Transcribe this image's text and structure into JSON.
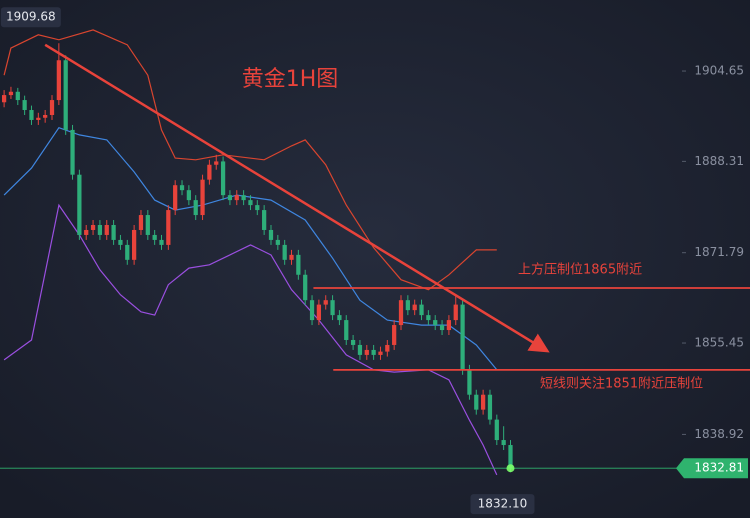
{
  "chart_data": {
    "type": "candlestick",
    "title": "黄金1H图",
    "xlim": [
      -0.6,
      109.0
    ],
    "ylim": [
      1823.8,
      1917.5
    ],
    "yticks": [
      1838.92,
      1855.45,
      1871.79,
      1888.31,
      1904.65
    ],
    "up_color": "#e8433b",
    "down_color": "#2eae7a",
    "candles": [
      [
        1899.0,
        1901.2,
        1898.1,
        1900.3
      ],
      [
        1900.3,
        1901.8,
        1899.6,
        1900.9
      ],
      [
        1900.9,
        1901.6,
        1898.5,
        1899.4
      ],
      [
        1899.4,
        1900.2,
        1896.7,
        1897.6
      ],
      [
        1897.6,
        1898.4,
        1894.9,
        1895.8
      ],
      [
        1895.8,
        1897.1,
        1894.9,
        1896.2
      ],
      [
        1896.2,
        1897.6,
        1895.3,
        1896.7
      ],
      [
        1896.7,
        1900.3,
        1895.8,
        1899.4
      ],
      [
        1899.4,
        1909.68,
        1898.5,
        1906.6
      ],
      [
        1906.6,
        1907.5,
        1893.1,
        1894.0
      ],
      [
        1894.0,
        1894.9,
        1885.0,
        1885.9
      ],
      [
        1885.9,
        1886.8,
        1874.1,
        1875.0
      ],
      [
        1875.0,
        1876.8,
        1874.1,
        1875.9
      ],
      [
        1875.9,
        1877.7,
        1875.0,
        1876.8
      ],
      [
        1876.8,
        1877.7,
        1874.1,
        1875.0
      ],
      [
        1875.0,
        1877.7,
        1874.1,
        1876.8
      ],
      [
        1876.8,
        1877.7,
        1873.2,
        1874.1
      ],
      [
        1874.1,
        1875.0,
        1872.3,
        1873.2
      ],
      [
        1873.2,
        1874.1,
        1869.6,
        1870.5
      ],
      [
        1870.5,
        1876.8,
        1869.6,
        1875.9
      ],
      [
        1875.9,
        1879.5,
        1875.0,
        1878.6
      ],
      [
        1878.6,
        1879.5,
        1874.1,
        1875.0
      ],
      [
        1875.0,
        1875.9,
        1873.2,
        1874.1
      ],
      [
        1874.1,
        1875.0,
        1872.3,
        1873.2
      ],
      [
        1873.2,
        1880.4,
        1872.3,
        1879.5
      ],
      [
        1879.5,
        1884.9,
        1878.6,
        1884.0
      ],
      [
        1884.0,
        1884.9,
        1882.2,
        1883.1
      ],
      [
        1883.1,
        1884.0,
        1880.4,
        1881.3
      ],
      [
        1881.3,
        1882.2,
        1877.7,
        1878.6
      ],
      [
        1878.6,
        1885.9,
        1877.7,
        1885.0
      ],
      [
        1885.0,
        1888.6,
        1884.1,
        1887.7
      ],
      [
        1887.7,
        1889.5,
        1886.8,
        1888.3
      ],
      [
        1888.3,
        1889.2,
        1881.3,
        1882.2
      ],
      [
        1882.2,
        1883.1,
        1880.4,
        1881.3
      ],
      [
        1881.3,
        1883.1,
        1880.4,
        1882.2
      ],
      [
        1882.2,
        1883.1,
        1880.4,
        1881.3
      ],
      [
        1881.3,
        1882.2,
        1879.5,
        1880.4
      ],
      [
        1880.4,
        1881.3,
        1878.6,
        1879.5
      ],
      [
        1879.5,
        1880.4,
        1875.0,
        1875.9
      ],
      [
        1875.9,
        1876.8,
        1873.2,
        1874.1
      ],
      [
        1874.1,
        1875.0,
        1872.3,
        1873.2
      ],
      [
        1873.2,
        1874.1,
        1869.6,
        1870.5
      ],
      [
        1870.5,
        1872.3,
        1869.6,
        1871.4
      ],
      [
        1871.4,
        1872.3,
        1866.9,
        1867.8
      ],
      [
        1867.8,
        1868.7,
        1862.3,
        1863.2
      ],
      [
        1863.2,
        1864.1,
        1858.7,
        1859.6
      ],
      [
        1859.6,
        1863.3,
        1858.7,
        1862.4
      ],
      [
        1862.4,
        1864.1,
        1861.5,
        1863.2
      ],
      [
        1863.2,
        1864.1,
        1859.6,
        1860.5
      ],
      [
        1860.5,
        1861.4,
        1858.7,
        1859.6
      ],
      [
        1859.6,
        1860.5,
        1855.1,
        1856.0
      ],
      [
        1856.0,
        1856.9,
        1854.2,
        1855.1
      ],
      [
        1855.1,
        1856.0,
        1852.4,
        1853.3
      ],
      [
        1853.3,
        1855.1,
        1852.4,
        1854.2
      ],
      [
        1854.2,
        1855.1,
        1852.4,
        1853.3
      ],
      [
        1853.3,
        1854.8,
        1852.4,
        1853.9
      ],
      [
        1853.9,
        1856.0,
        1853.0,
        1855.1
      ],
      [
        1855.1,
        1859.6,
        1854.2,
        1858.7
      ],
      [
        1858.7,
        1864.1,
        1857.8,
        1863.2
      ],
      [
        1863.2,
        1864.1,
        1860.5,
        1861.4
      ],
      [
        1861.4,
        1863.3,
        1860.5,
        1862.4
      ],
      [
        1862.4,
        1863.3,
        1859.6,
        1860.5
      ],
      [
        1860.5,
        1861.4,
        1858.7,
        1859.6
      ],
      [
        1859.6,
        1860.5,
        1857.8,
        1858.7
      ],
      [
        1858.7,
        1859.6,
        1856.9,
        1857.8
      ],
      [
        1857.8,
        1860.5,
        1856.9,
        1859.6
      ],
      [
        1859.6,
        1864.1,
        1858.7,
        1862.4
      ],
      [
        1862.4,
        1863.3,
        1849.7,
        1850.6
      ],
      [
        1850.6,
        1851.5,
        1845.2,
        1846.1
      ],
      [
        1846.1,
        1847.0,
        1842.5,
        1843.4
      ],
      [
        1843.4,
        1847.0,
        1842.5,
        1846.1
      ],
      [
        1846.1,
        1847.0,
        1840.7,
        1841.6
      ],
      [
        1841.6,
        1842.5,
        1837.0,
        1837.9
      ],
      [
        1837.9,
        1840.4,
        1836.1,
        1837.0
      ],
      [
        1837.0,
        1837.9,
        1832.1,
        1832.81
      ]
    ],
    "max_label": "1909.68",
    "min_label": "1832.10",
    "bands": [
      {
        "color": "#d9452f",
        "x": [
          0,
          1,
          5,
          8,
          13,
          18,
          21,
          23,
          25,
          28,
          32,
          38,
          42,
          44,
          47,
          50,
          54,
          58,
          62,
          65,
          69,
          72
        ],
        "values": [
          1903.9,
          1908.8,
          1911.2,
          1910.3,
          1912.1,
          1909.4,
          1903.9,
          1894.0,
          1888.9,
          1888.6,
          1889.5,
          1888.6,
          1891.1,
          1892.2,
          1887.7,
          1880.4,
          1872.7,
          1866.9,
          1865.1,
          1867.8,
          1872.3,
          1872.3
        ]
      },
      {
        "color": "#3f86e0",
        "x": [
          0,
          4,
          8,
          11,
          15,
          19,
          22,
          25,
          29,
          34,
          39,
          44,
          48,
          52,
          56,
          61,
          65,
          69,
          72
        ],
        "values": [
          1882.2,
          1887.1,
          1894.4,
          1893.1,
          1892.2,
          1886.4,
          1881.3,
          1879.5,
          1880.4,
          1882.2,
          1881.3,
          1877.7,
          1870.8,
          1863.2,
          1859.6,
          1858.7,
          1858.7,
          1855.1,
          1850.6
        ]
      },
      {
        "color": "#9a4fe0",
        "x": [
          0,
          4,
          8,
          11,
          14,
          17,
          20,
          22,
          24,
          27,
          30,
          33,
          36,
          39,
          42,
          46,
          50,
          54,
          57,
          62,
          65,
          68,
          70,
          72
        ],
        "values": [
          1852.4,
          1856.0,
          1880.4,
          1875.0,
          1868.7,
          1864.2,
          1861.1,
          1860.5,
          1866.0,
          1869.0,
          1869.6,
          1871.4,
          1873.2,
          1871.4,
          1865.1,
          1859.6,
          1853.3,
          1850.6,
          1850.2,
          1850.6,
          1848.8,
          1841.5,
          1837.0,
          1831.6
        ]
      }
    ],
    "trendline": {
      "color": "#e8433b",
      "x": [
        6.0,
        79.1
      ],
      "values": [
        1909.4,
        1854.2
      ]
    },
    "levels": [
      {
        "value": 1865.4,
        "start": 45.2,
        "label": "上方压制位1865附近"
      },
      {
        "value": 1850.6,
        "start": 48.1,
        "label": "短线则关注1851附近压制位"
      }
    ],
    "current_color": "#2fb36e"
  }
}
